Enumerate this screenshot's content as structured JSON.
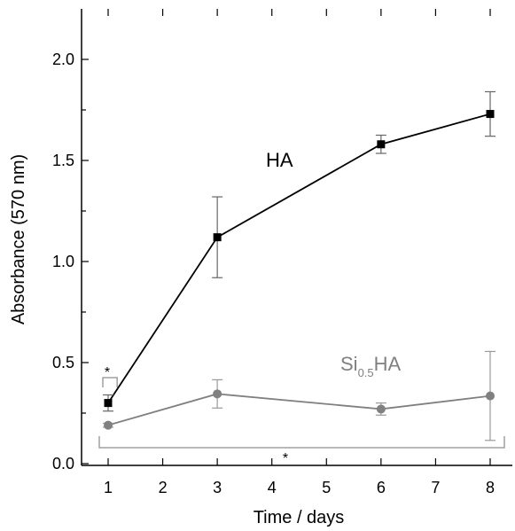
{
  "chart_data": {
    "type": "line",
    "xlabel": "Time / days",
    "ylabel": "Absorbance (570 nm)",
    "xlim": [
      0.5,
      8.5
    ],
    "ylim": [
      0.0,
      2.25
    ],
    "x_ticks": [
      1,
      2,
      3,
      4,
      5,
      6,
      7,
      8
    ],
    "y_ticks": [
      0.0,
      0.5,
      1.0,
      1.5,
      2.0
    ],
    "y_tick_labels": [
      "0.0",
      "0.5",
      "1.0",
      "1.5",
      "2.0"
    ],
    "grid": false,
    "series": [
      {
        "name": "HA",
        "color": "#000000",
        "marker": "square",
        "x": [
          1,
          3,
          6,
          8
        ],
        "y": [
          0.3,
          1.12,
          1.58,
          1.73
        ],
        "error": [
          0.04,
          0.2,
          0.045,
          0.11
        ]
      },
      {
        "name": "Si0.5HA",
        "color": "#808080",
        "marker": "circle",
        "x": [
          1,
          3,
          6,
          8
        ],
        "y": [
          0.19,
          0.345,
          0.27,
          0.335
        ],
        "error": [
          0.01,
          0.07,
          0.03,
          0.22
        ]
      }
    ],
    "series_labels": {
      "ha": "HA",
      "si_main": "Si",
      "si_sub": "0.5",
      "si_tail": "HA"
    },
    "annotations": [
      {
        "text": "*",
        "bracket_x": [
          1.0,
          1.1
        ]
      },
      {
        "text": "*",
        "bracket_x": [
          0.9,
          8.3
        ]
      }
    ]
  }
}
